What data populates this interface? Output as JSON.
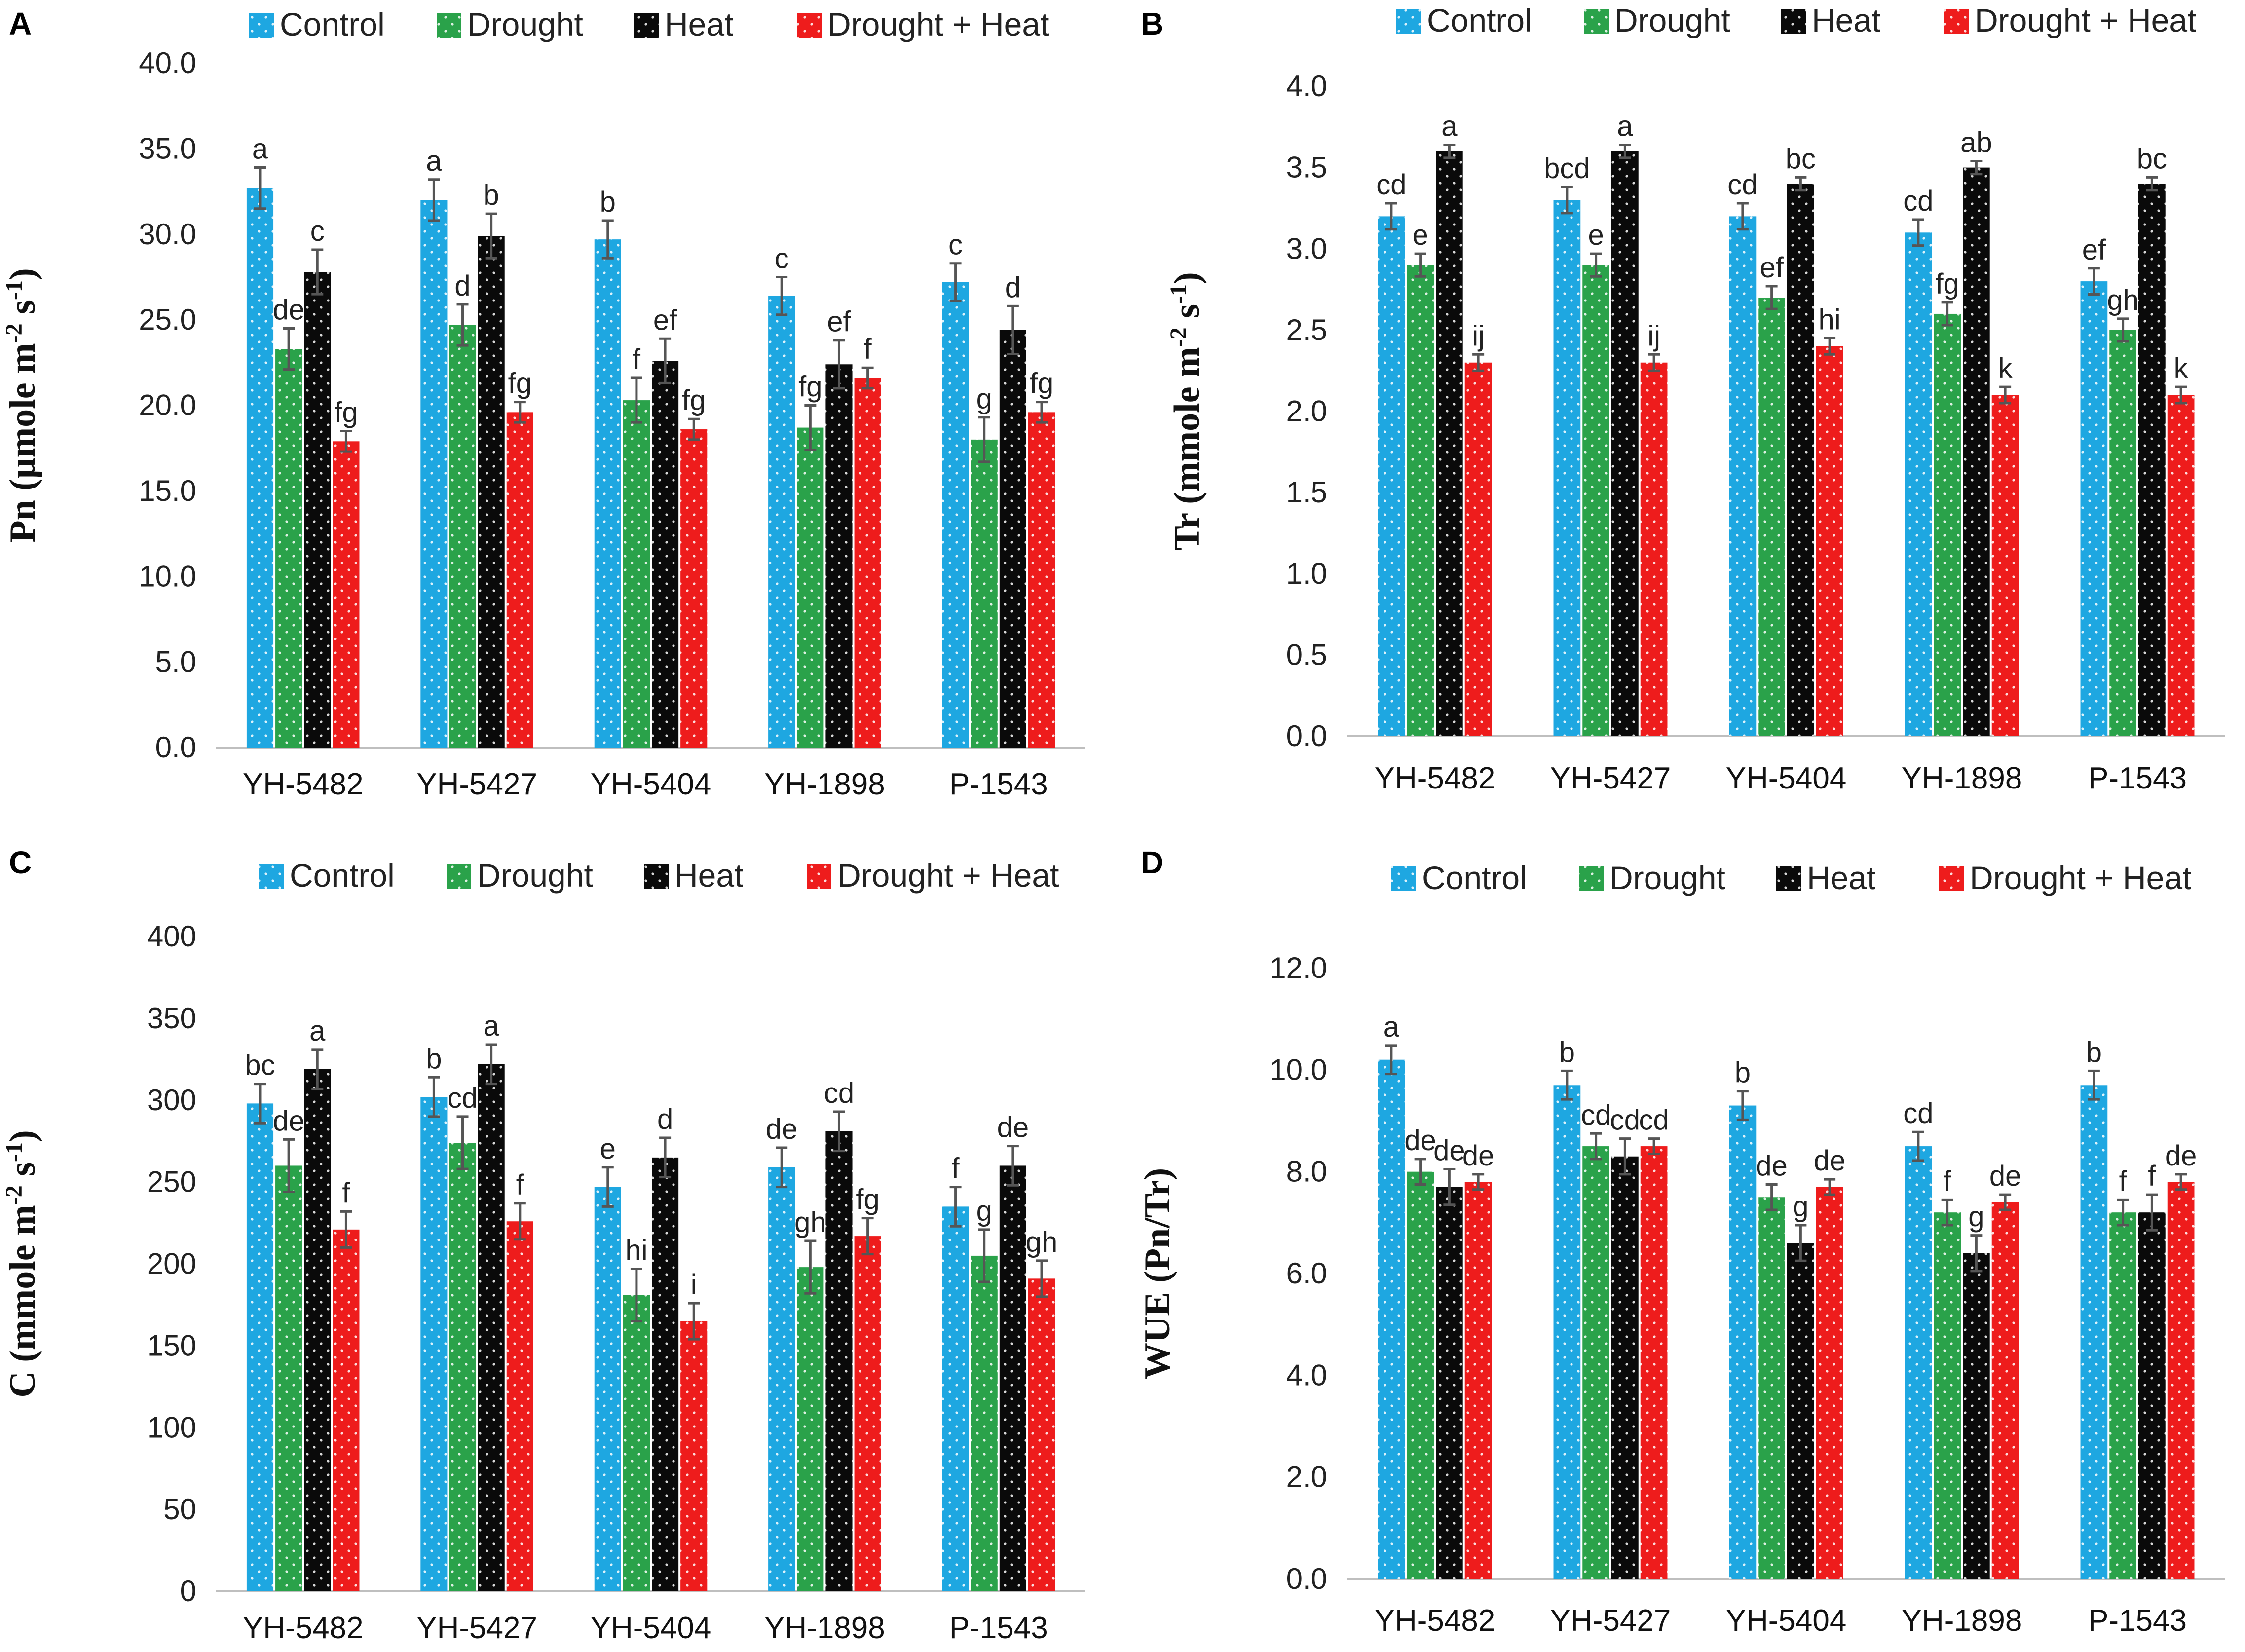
{
  "chart_data": [
    {
      "panel": "A",
      "type": "bar",
      "title": "",
      "xlabel": "",
      "ylabel": "Pn (µmole m-2 s-1)",
      "ylabel_parts": {
        "base": "Pn (µmole m",
        "sup1": "-2",
        "mid": " s",
        "sup2": "-1",
        "end": ")"
      },
      "ylim": [
        0,
        40
      ],
      "ytick_step": 5,
      "ytick_decimals": 1,
      "categories": [
        "YH-5482",
        "YH-5427",
        "YH-5404",
        "YH-1898",
        "P-1543"
      ],
      "series": [
        {
          "name": "Control",
          "values": [
            32.7,
            32.0,
            29.7,
            26.4,
            27.2
          ],
          "errors": [
            1.2,
            1.2,
            1.1,
            1.1,
            1.1
          ],
          "letters": [
            "a",
            "a",
            "b",
            "c",
            "c"
          ]
        },
        {
          "name": "Drought",
          "values": [
            23.3,
            24.7,
            20.3,
            18.7,
            18.0
          ],
          "errors": [
            1.2,
            1.2,
            1.3,
            1.3,
            1.3
          ],
          "letters": [
            "de",
            "d",
            "f",
            "fg",
            "g"
          ]
        },
        {
          "name": "Heat",
          "values": [
            27.8,
            29.9,
            22.6,
            22.4,
            24.4
          ],
          "errors": [
            1.3,
            1.3,
            1.3,
            1.4,
            1.4
          ],
          "letters": [
            "c",
            "b",
            "ef",
            "ef",
            "d"
          ]
        },
        {
          "name": "Drought + Heat",
          "values": [
            17.9,
            19.6,
            18.6,
            21.6,
            19.6
          ],
          "errors": [
            0.6,
            0.6,
            0.6,
            0.6,
            0.6
          ],
          "letters": [
            "fg",
            "fg",
            "fg",
            "f",
            "fg"
          ]
        }
      ]
    },
    {
      "panel": "B",
      "type": "bar",
      "title": "",
      "xlabel": "",
      "ylabel": "Tr (mmole m-2 s-1)",
      "ylabel_parts": {
        "base": "Tr (mmole m",
        "sup1": "-2",
        "mid": " s",
        "sup2": "-1",
        "end": ")"
      },
      "ylim": [
        0,
        4
      ],
      "ytick_step": 0.5,
      "ytick_decimals": 1,
      "categories": [
        "YH-5482",
        "YH-5427",
        "YH-5404",
        "YH-1898",
        "P-1543"
      ],
      "series": [
        {
          "name": "Control",
          "values": [
            3.2,
            3.3,
            3.2,
            3.1,
            2.8
          ],
          "errors": [
            0.08,
            0.08,
            0.08,
            0.08,
            0.08
          ],
          "letters": [
            "cd",
            "bcd",
            "cd",
            "cd",
            "ef"
          ]
        },
        {
          "name": "Drought",
          "values": [
            2.9,
            2.9,
            2.7,
            2.6,
            2.5
          ],
          "errors": [
            0.07,
            0.07,
            0.07,
            0.07,
            0.07
          ],
          "letters": [
            "e",
            "e",
            "ef",
            "fg",
            "gh"
          ]
        },
        {
          "name": "Heat",
          "values": [
            3.6,
            3.6,
            3.4,
            3.5,
            3.4
          ],
          "errors": [
            0.04,
            0.04,
            0.04,
            0.04,
            0.04
          ],
          "letters": [
            "a",
            "a",
            "bc",
            "ab",
            "bc"
          ]
        },
        {
          "name": "Drought + Heat",
          "values": [
            2.3,
            2.3,
            2.4,
            2.1,
            2.1
          ],
          "errors": [
            0.05,
            0.05,
            0.05,
            0.05,
            0.05
          ],
          "letters": [
            "ij",
            "ij",
            "hi",
            "k",
            "k"
          ]
        }
      ]
    },
    {
      "panel": "C",
      "type": "bar",
      "title": "",
      "xlabel": "",
      "ylabel": "C (mmole m-2 s-1)",
      "ylabel_parts": {
        "base": "C (mmole m",
        "sup1": "-2",
        "mid": " s",
        "sup2": "-1",
        "end": ")"
      },
      "ylim": [
        0,
        400
      ],
      "ytick_step": 50,
      "ytick_decimals": 0,
      "categories": [
        "YH-5482",
        "YH-5427",
        "YH-5404",
        "YH-1898",
        "P-1543"
      ],
      "series": [
        {
          "name": "Control",
          "values": [
            298,
            302,
            247,
            259,
            235
          ],
          "errors": [
            12,
            12,
            12,
            12,
            12
          ],
          "letters": [
            "bc",
            "b",
            "e",
            "de",
            "f"
          ]
        },
        {
          "name": "Drought",
          "values": [
            260,
            274,
            181,
            198,
            205
          ],
          "errors": [
            16,
            16,
            16,
            16,
            16
          ],
          "letters": [
            "de",
            "cd",
            "hi",
            "gh",
            "g"
          ]
        },
        {
          "name": "Heat",
          "values": [
            319,
            322,
            265,
            281,
            260
          ],
          "errors": [
            12,
            12,
            12,
            12,
            12
          ],
          "letters": [
            "a",
            "a",
            "d",
            "cd",
            "de"
          ]
        },
        {
          "name": "Drought + Heat",
          "values": [
            221,
            226,
            165,
            217,
            191
          ],
          "errors": [
            11,
            11,
            11,
            11,
            11
          ],
          "letters": [
            "f",
            "f",
            "i",
            "fg",
            "gh"
          ]
        }
      ]
    },
    {
      "panel": "D",
      "type": "bar",
      "title": "",
      "xlabel": "",
      "ylabel": "WUE (Pn/Tr)",
      "ylabel_parts": {
        "base": "WUE (Pn/Tr)",
        "sup1": "",
        "mid": "",
        "sup2": "",
        "end": ""
      },
      "ylim": [
        0,
        12
      ],
      "ytick_step": 2,
      "ytick_decimals": 1,
      "categories": [
        "YH-5482",
        "YH-5427",
        "YH-5404",
        "YH-1898",
        "P-1543"
      ],
      "series": [
        {
          "name": "Control",
          "values": [
            10.2,
            9.7,
            9.3,
            8.5,
            9.7
          ],
          "errors": [
            0.28,
            0.28,
            0.28,
            0.28,
            0.28
          ],
          "letters": [
            "a",
            "b",
            "b",
            "cd",
            "b"
          ]
        },
        {
          "name": "Drought",
          "values": [
            8.0,
            8.5,
            7.5,
            7.2,
            7.2
          ],
          "errors": [
            0.25,
            0.25,
            0.25,
            0.25,
            0.25
          ],
          "letters": [
            "de",
            "cd",
            "de",
            "f",
            "f"
          ]
        },
        {
          "name": "Heat",
          "values": [
            7.7,
            8.3,
            6.6,
            6.4,
            7.2
          ],
          "errors": [
            0.35,
            0.35,
            0.35,
            0.35,
            0.35
          ],
          "letters": [
            "de",
            "cd",
            "g",
            "g",
            "f"
          ]
        },
        {
          "name": "Drought + Heat",
          "values": [
            7.8,
            8.5,
            7.7,
            7.4,
            7.8
          ],
          "errors": [
            0.15,
            0.15,
            0.15,
            0.15,
            0.15
          ],
          "letters": [
            "de",
            "cd",
            "de",
            "de",
            "de"
          ]
        }
      ]
    }
  ],
  "legend": [
    {
      "name": "Control",
      "color": "#1ea7e1",
      "pattern": "dots-white"
    },
    {
      "name": "Drought",
      "color": "#2aa24a",
      "pattern": "dots-white"
    },
    {
      "name": "Heat",
      "color": "#0a0a0a",
      "pattern": "dots-white"
    },
    {
      "name": "Drought + Heat",
      "color": "#ee1c1c",
      "pattern": "dots-white"
    }
  ]
}
